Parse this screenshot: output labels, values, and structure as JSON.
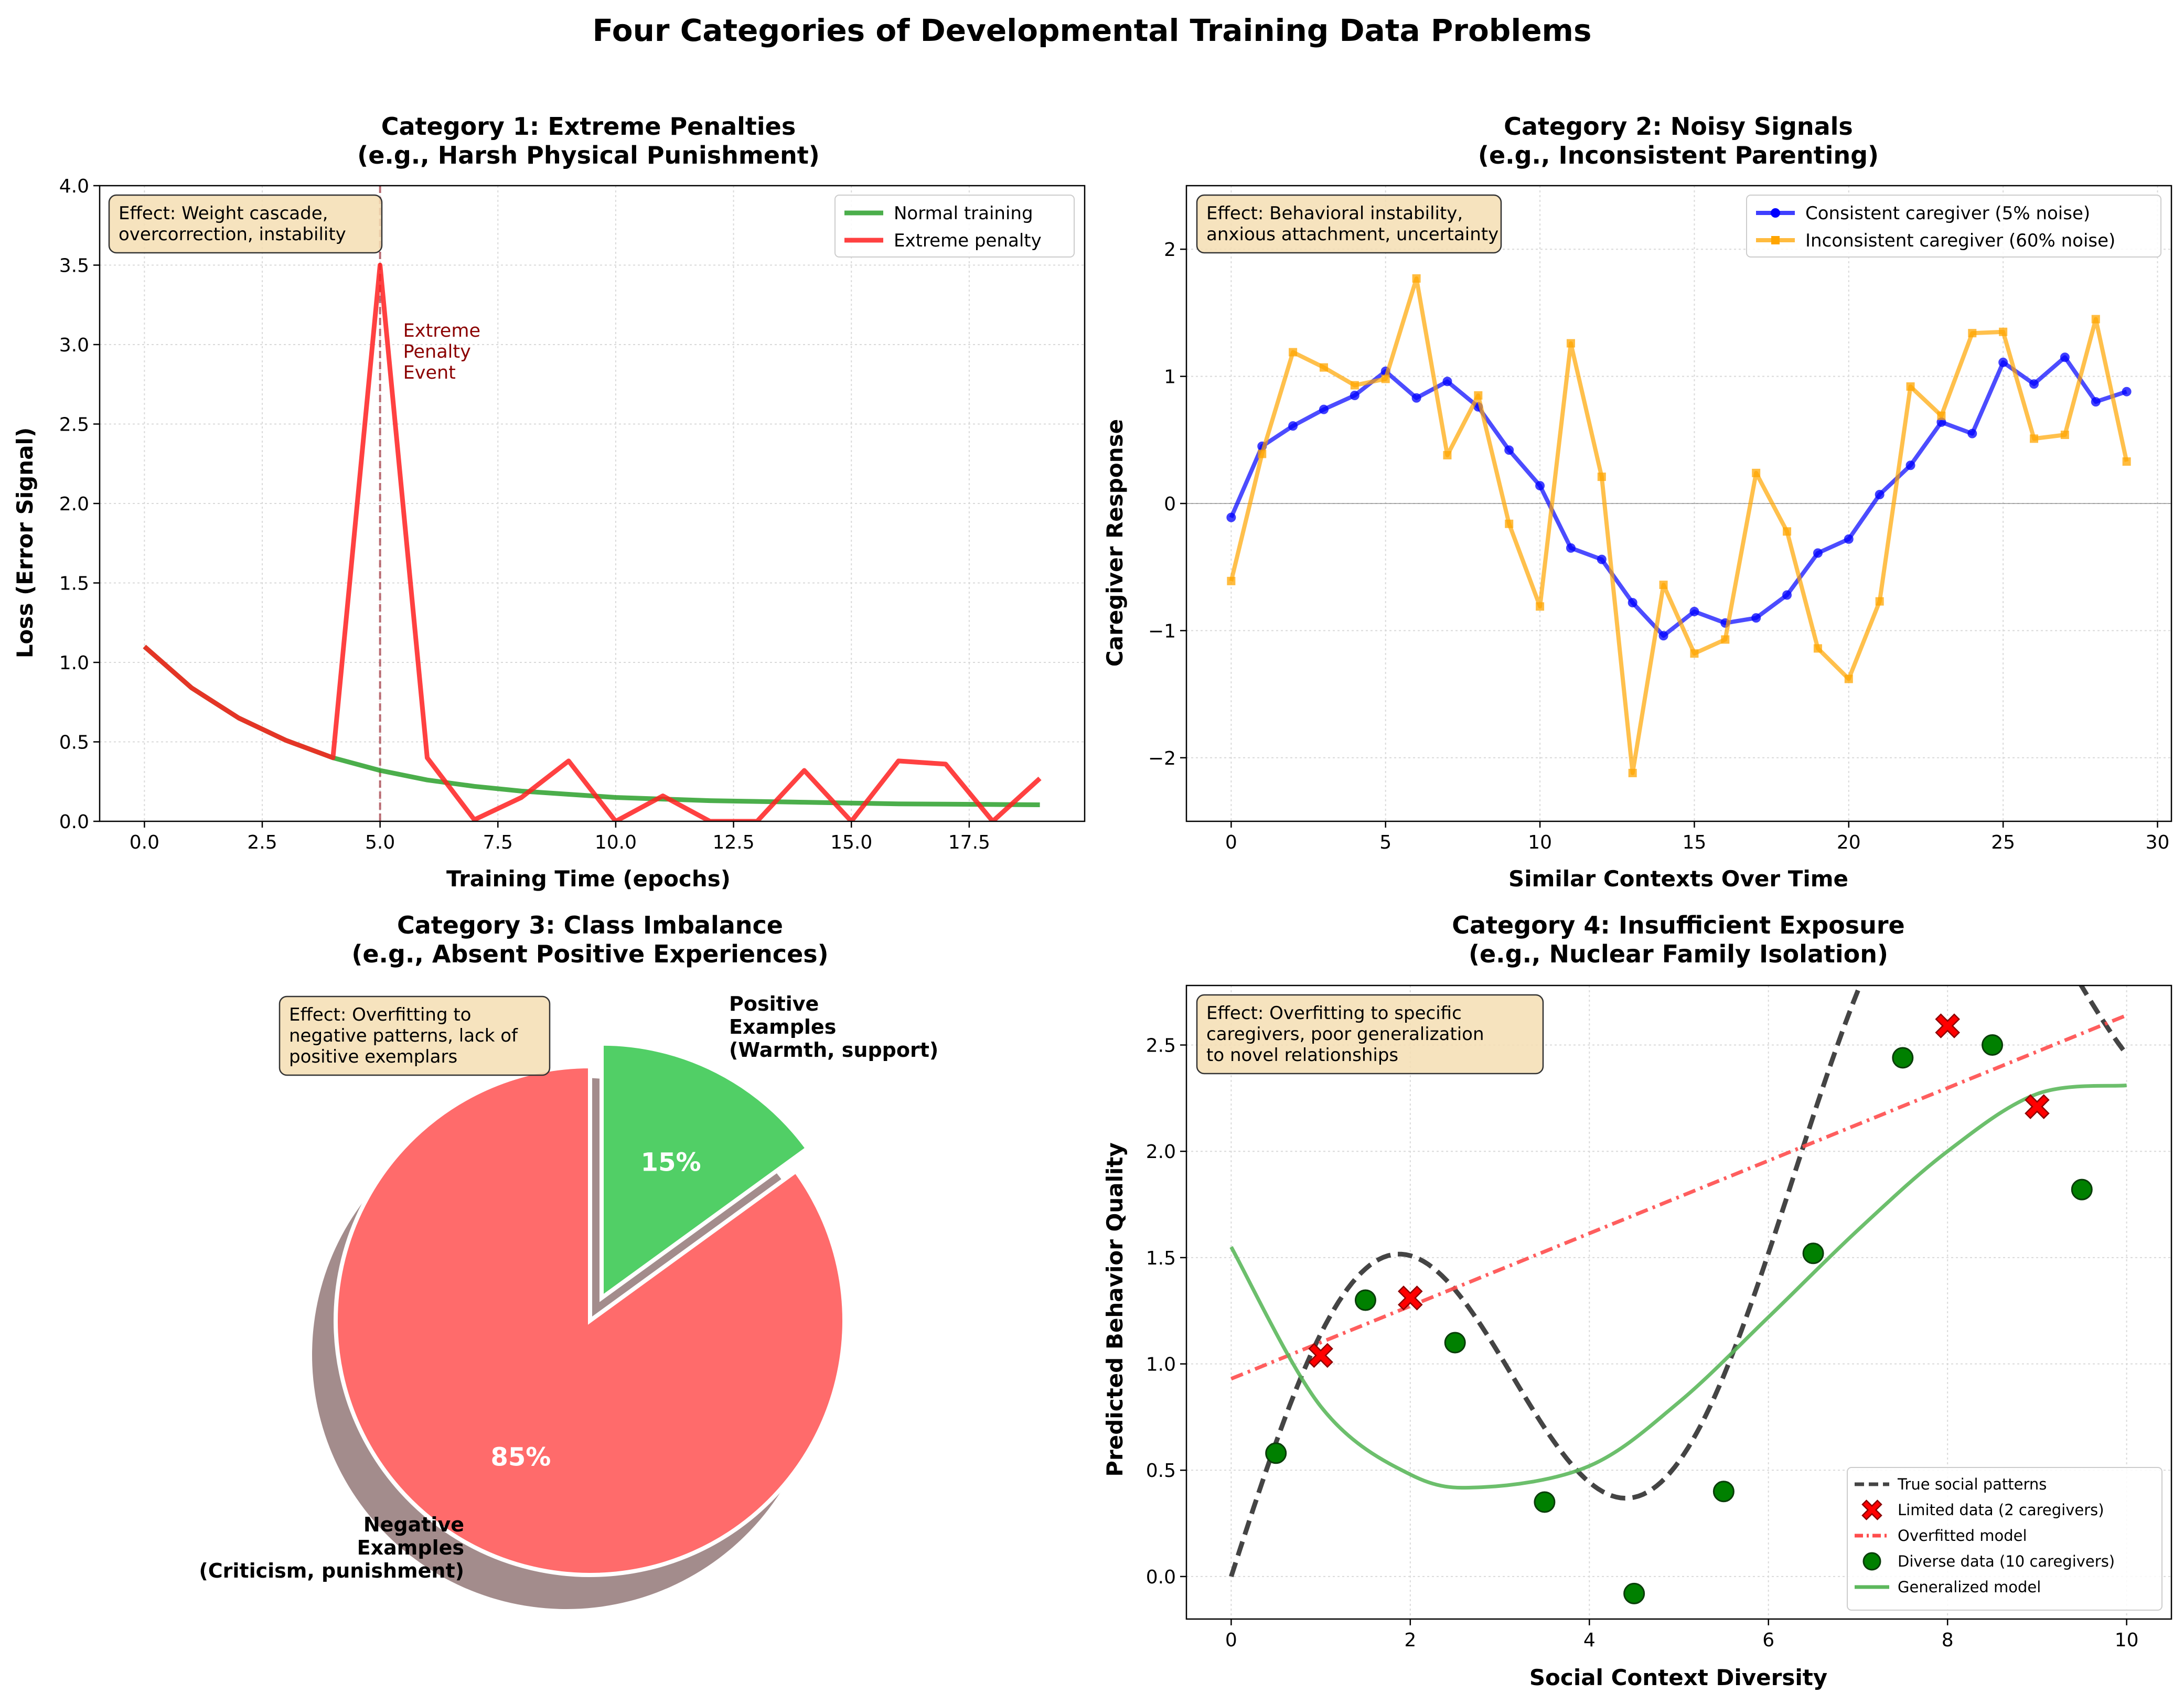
{
  "figure_title": "Four Categories of Developmental Training Data Problems",
  "chart_data": [
    {
      "type": "line",
      "title": "Category 1: Extreme Penalties",
      "subtitle": "(e.g., Harsh Physical Punishment)",
      "xlabel": "Training Time (epochs)",
      "ylabel": "Loss (Error Signal)",
      "xlim": [
        -0.95,
        19.95
      ],
      "ylim": [
        0,
        4.0
      ],
      "xticks": [
        0,
        2.5,
        5,
        7.5,
        10,
        12.5,
        15,
        17.5
      ],
      "xtick_labels": [
        "0.0",
        "2.5",
        "5.0",
        "7.5",
        "10.0",
        "12.5",
        "15.0",
        "17.5"
      ],
      "yticks": [
        0,
        0.5,
        1,
        1.5,
        2,
        2.5,
        3,
        3.5,
        4
      ],
      "ytick_labels": [
        "0.0",
        "0.5",
        "1.0",
        "1.5",
        "2.0",
        "2.5",
        "3.0",
        "3.5",
        "4.0"
      ],
      "grid": true,
      "legend_position": "top-right",
      "effect_box": "Effect: Weight cascade,\novercorrection, instability",
      "annotation": "Extreme\nPenalty\nEvent",
      "vline_x": 5,
      "x": [
        0,
        1,
        2,
        3,
        4,
        5,
        6,
        7,
        8,
        9,
        10,
        11,
        12,
        13,
        14,
        15,
        16,
        17,
        18,
        19
      ],
      "series": [
        {
          "name": "Normal training",
          "color": "#2ca02c",
          "values": [
            1.1,
            0.84,
            0.65,
            0.51,
            0.4,
            0.32,
            0.26,
            0.22,
            0.19,
            0.17,
            0.15,
            0.14,
            0.13,
            0.125,
            0.12,
            0.115,
            0.11,
            0.108,
            0.106,
            0.104
          ]
        },
        {
          "name": "Extreme penalty",
          "color": "#ff2020",
          "values": [
            1.1,
            0.84,
            0.65,
            0.51,
            0.4,
            3.5,
            0.4,
            0.01,
            0.15,
            0.38,
            0.0,
            0.16,
            0.0,
            0.0,
            0.32,
            0.0,
            0.38,
            0.36,
            0.0,
            0.27
          ]
        }
      ]
    },
    {
      "type": "line",
      "title": "Category 2: Noisy Signals",
      "subtitle": "(e.g., Inconsistent Parenting)",
      "xlabel": "Similar Contexts Over Time",
      "ylabel": "Caregiver Response",
      "xlim": [
        -1.45,
        30.45
      ],
      "ylim": [
        -2.5,
        2.5
      ],
      "xticks": [
        0,
        5,
        10,
        15,
        20,
        25,
        30
      ],
      "xtick_labels": [
        "0",
        "5",
        "10",
        "15",
        "20",
        "25",
        "30"
      ],
      "yticks": [
        -2,
        -1,
        0,
        1,
        2
      ],
      "ytick_labels": [
        "−2",
        "−1",
        "0",
        "1",
        "2"
      ],
      "grid": true,
      "legend_position": "top-right",
      "effect_box": "Effect: Behavioral instability,\nanxious attachment, uncertainty",
      "x": [
        0,
        1,
        2,
        3,
        4,
        5,
        6,
        7,
        8,
        9,
        10,
        11,
        12,
        13,
        14,
        15,
        16,
        17,
        18,
        19,
        20,
        21,
        22,
        23,
        24,
        25,
        26,
        27,
        28,
        29
      ],
      "series": [
        {
          "name": "Consistent caregiver (5% noise)",
          "color": "#0000ff",
          "marker": "circle",
          "values": [
            -0.11,
            0.45,
            0.61,
            0.74,
            0.85,
            1.04,
            0.83,
            0.96,
            0.76,
            0.42,
            0.14,
            -0.35,
            -0.44,
            -0.78,
            -1.04,
            -0.85,
            -0.94,
            -0.9,
            -0.72,
            -0.39,
            -0.28,
            0.07,
            0.3,
            0.64,
            0.55,
            1.11,
            0.94,
            1.15,
            0.8,
            0.88
          ]
        },
        {
          "name": "Inconsistent caregiver (60% noise)",
          "color": "#ffa500",
          "marker": "square",
          "values": [
            -0.61,
            0.39,
            1.19,
            1.07,
            0.93,
            0.98,
            1.77,
            0.38,
            0.85,
            -0.16,
            -0.81,
            1.26,
            0.21,
            -2.12,
            -0.64,
            -1.18,
            -1.07,
            0.24,
            -0.22,
            -1.14,
            -1.38,
            -0.77,
            0.92,
            0.69,
            1.34,
            1.35,
            0.51,
            0.54,
            1.45,
            0.33
          ]
        }
      ]
    },
    {
      "type": "pie",
      "title": "Category 3: Class Imbalance",
      "subtitle": "(e.g., Absent Positive Experiences)",
      "effect_box": "Effect: Overfitting to\nnegative patterns, lack of\npositive exemplars",
      "slices": [
        {
          "label": "Negative\nExamples\n(Criticism, punishment)",
          "value": 85,
          "pct_label": "85%",
          "color": "#ff6b6b"
        },
        {
          "label": "Positive\nExamples\n(Warmth, support)",
          "value": 15,
          "pct_label": "15%",
          "color": "#51cf66",
          "explode": true
        }
      ]
    },
    {
      "type": "line",
      "title": "Category 4: Insufficient Exposure",
      "subtitle": "(e.g., Nuclear Family Isolation)",
      "xlabel": "Social Context Diversity",
      "ylabel": "Predicted Behavior Quality",
      "xlim": [
        -0.5,
        10.5
      ],
      "ylim": [
        -0.2,
        2.78
      ],
      "xticks": [
        0,
        2,
        4,
        6,
        8,
        10
      ],
      "xtick_labels": [
        "0",
        "2",
        "4",
        "6",
        "8",
        "10"
      ],
      "yticks": [
        0,
        0.5,
        1,
        1.5,
        2,
        2.5
      ],
      "ytick_labels": [
        "0.0",
        "0.5",
        "1.0",
        "1.5",
        "2.0",
        "2.5"
      ],
      "grid": true,
      "legend_position": "bottom-right",
      "effect_box": "Effect: Overfitting to specific\ncaregivers, poor generalization\nto novel relationships",
      "series": [
        {
          "name": "True social patterns",
          "color": "#444444",
          "style": "dashed",
          "function": "sin(x) + 0.3x",
          "x_range": [
            0,
            10
          ]
        },
        {
          "name": "Limited data (2 caregivers)",
          "color": "#ff0000",
          "marker": "X",
          "x": [
            1,
            2,
            8,
            9
          ],
          "values": [
            1.04,
            1.31,
            2.59,
            2.21
          ]
        },
        {
          "name": "Overfitted model",
          "color": "#ff4d4d",
          "style": "dashdot",
          "x": [
            0,
            10
          ],
          "values": [
            0.93,
            2.64
          ]
        },
        {
          "name": "Diverse data (10 caregivers)",
          "color": "#008000",
          "marker": "circle",
          "x": [
            0.5,
            1.5,
            2.5,
            3.5,
            4.5,
            5.5,
            6.5,
            7.5,
            8.5,
            9.5
          ],
          "values": [
            0.58,
            1.3,
            1.1,
            0.35,
            -0.08,
            0.4,
            1.52,
            2.44,
            2.5,
            1.82
          ]
        },
        {
          "name": "Generalized model",
          "color": "#5cb85c",
          "style": "solid",
          "x": [
            0,
            1,
            2,
            2.8,
            4,
            5,
            6,
            7,
            8,
            9,
            10
          ],
          "values": [
            1.55,
            0.8,
            0.48,
            0.42,
            0.52,
            0.82,
            1.22,
            1.63,
            2.0,
            2.27,
            2.31
          ]
        }
      ]
    }
  ]
}
